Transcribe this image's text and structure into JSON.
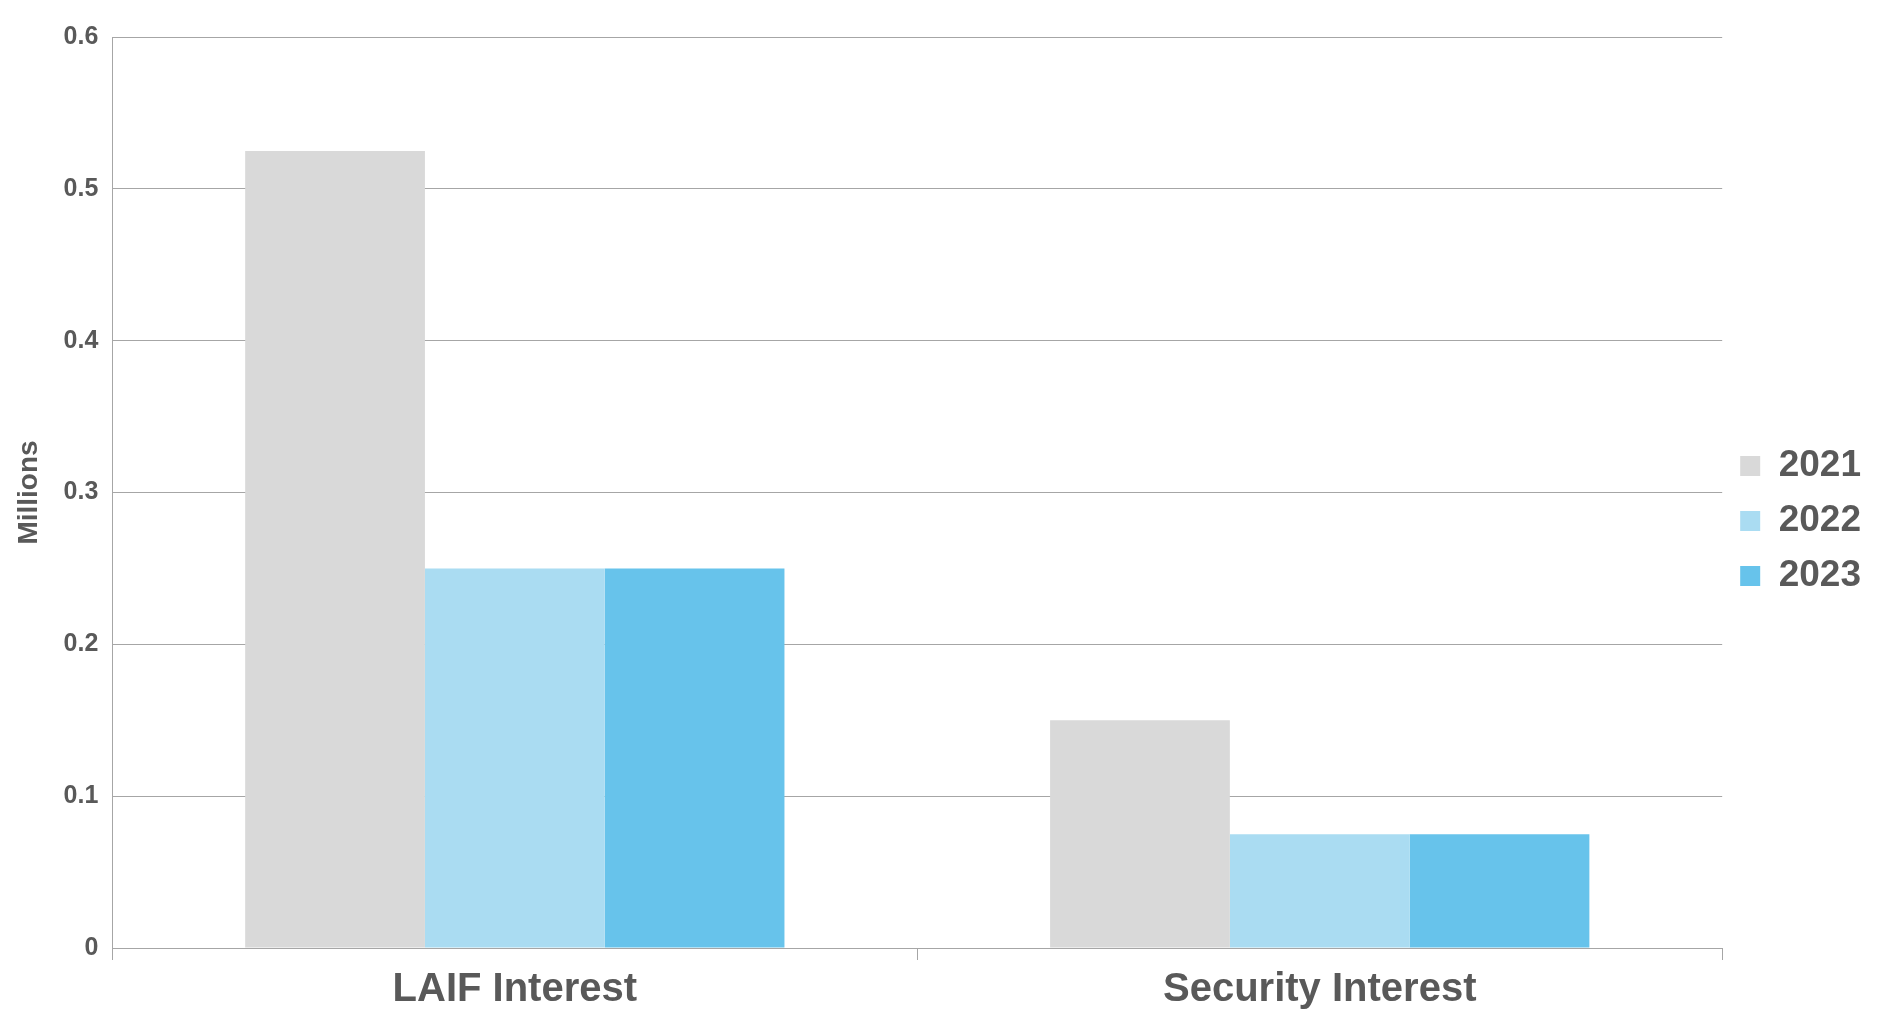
{
  "chart_data": {
    "type": "bar",
    "ylabel": "Millions",
    "categories": [
      "LAIF Interest",
      "Security Interest"
    ],
    "series": [
      {
        "name": "2021",
        "color": "#d9d9d9",
        "values": [
          0.525,
          0.15
        ]
      },
      {
        "name": "2022",
        "color": "#aadcf2",
        "values": [
          0.25,
          0.075
        ]
      },
      {
        "name": "2023",
        "color": "#67c3eb",
        "values": [
          0.25,
          0.075
        ]
      }
    ],
    "ylim": [
      0,
      0.6
    ],
    "yticks": [
      0,
      0.1,
      0.2,
      0.3,
      0.4,
      0.5,
      0.6
    ],
    "grid": "y",
    "legend": "right"
  }
}
